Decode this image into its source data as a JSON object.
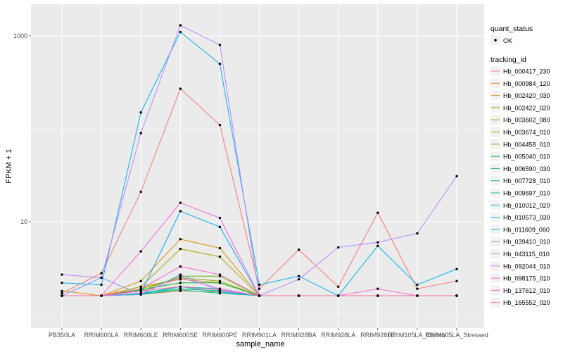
{
  "chart_data": {
    "type": "line",
    "xlabel": "sample_name",
    "ylabel": "FPKM + 1",
    "y_scale": "log10",
    "ylim": [
      1.55,
      1500
    ],
    "y_ticks": [
      10,
      1000
    ],
    "grid": true,
    "legend_position": "right",
    "categories": [
      "PB350LA",
      "RRIM600LA",
      "RRIM600LE",
      "RRIM600SE",
      "RRIM600PE",
      "RRIM901LA",
      "RRIM928BA",
      "RRIM928LA",
      "RRIM928LE",
      "RRIM105LA_Control",
      "RRIM105LA_Stressed"
    ],
    "point_legend": {
      "title": "quant_status",
      "label": "OK"
    },
    "line_legend_title": "tracking_id",
    "series": [
      {
        "name": "Hb_000417_230",
        "color": "#F8766D",
        "values": [
          1.7,
          2.8,
          21,
          270,
          110,
          1.9,
          5.0,
          2.0,
          12.5,
          1.9,
          2.3
        ]
      },
      {
        "name": "Hb_000984_120",
        "color": "#EC8239",
        "values": [
          1.6,
          1.6,
          1.65,
          1.8,
          1.75,
          1.6,
          1.6,
          1.6,
          1.6,
          1.6,
          1.6
        ]
      },
      {
        "name": "Hb_002420_030",
        "color": "#DB8E00",
        "values": [
          1.8,
          1.6,
          2.3,
          6.5,
          5.2,
          1.6,
          1.6,
          1.6,
          1.6,
          1.6,
          1.6
        ]
      },
      {
        "name": "Hb_002422_020",
        "color": "#C79800",
        "values": [
          1.6,
          1.6,
          2.0,
          2.4,
          2.2,
          1.6,
          1.6,
          1.6,
          1.6,
          1.6,
          1.6
        ]
      },
      {
        "name": "Hb_003602_080",
        "color": "#AEA200",
        "values": [
          1.6,
          1.6,
          2.0,
          5.1,
          4.2,
          1.6,
          1.6,
          1.6,
          1.6,
          1.6,
          1.6
        ]
      },
      {
        "name": "Hb_003674_010",
        "color": "#8FAA00",
        "values": [
          1.6,
          1.6,
          1.9,
          2.5,
          2.3,
          1.6,
          1.6,
          1.6,
          1.6,
          1.6,
          1.6
        ]
      },
      {
        "name": "Hb_004458_010",
        "color": "#64B200",
        "values": [
          1.6,
          1.6,
          1.8,
          2.6,
          2.6,
          1.6,
          1.6,
          1.6,
          1.6,
          1.6,
          1.6
        ]
      },
      {
        "name": "Hb_005040_010",
        "color": "#00B81B",
        "values": [
          1.6,
          1.6,
          1.85,
          2.2,
          2.2,
          1.6,
          1.6,
          1.6,
          1.6,
          1.6,
          1.6
        ]
      },
      {
        "name": "Hb_006590_030",
        "color": "#00BD5C",
        "values": [
          1.6,
          1.6,
          1.7,
          1.9,
          1.8,
          1.6,
          1.6,
          1.6,
          1.6,
          1.6,
          1.6
        ]
      },
      {
        "name": "Hb_007728_010",
        "color": "#00C08E",
        "values": [
          1.6,
          1.6,
          1.65,
          1.85,
          1.7,
          1.6,
          1.6,
          1.6,
          1.6,
          1.6,
          1.6
        ]
      },
      {
        "name": "Hb_009697_010",
        "color": "#00C1B7",
        "values": [
          1.6,
          1.6,
          1.7,
          2.0,
          1.9,
          1.6,
          1.6,
          1.6,
          1.6,
          1.6,
          1.6
        ]
      },
      {
        "name": "Hb_010012_020",
        "color": "#00BDDC",
        "values": [
          1.6,
          1.6,
          1.65,
          2.0,
          1.75,
          1.6,
          1.6,
          1.6,
          1.6,
          1.6,
          1.6
        ]
      },
      {
        "name": "Hb_010573_030",
        "color": "#00B2F3",
        "values": [
          2.2,
          2.1,
          150,
          1100,
          500,
          2.1,
          2.6,
          1.6,
          5.5,
          2.1,
          3.1
        ]
      },
      {
        "name": "Hb_011609_060",
        "color": "#00A6FF",
        "values": [
          1.6,
          1.6,
          1.7,
          13,
          8.8,
          1.6,
          1.6,
          1.6,
          1.6,
          1.6,
          1.6
        ]
      },
      {
        "name": "Hb_039410_010",
        "color": "#7F96FF",
        "values": [
          1.6,
          2.5,
          1.65,
          2.7,
          1.8,
          1.6,
          1.6,
          1.6,
          1.6,
          1.6,
          1.6
        ]
      },
      {
        "name": "Hb_043115_010",
        "color": "#BB83FF",
        "values": [
          2.7,
          2.5,
          90,
          1300,
          800,
          1.6,
          2.4,
          5.3,
          6.0,
          7.5,
          31
        ]
      },
      {
        "name": "Hb_092044_010",
        "color": "#E26EF7",
        "values": [
          1.6,
          1.6,
          1.7,
          2.5,
          1.9,
          1.6,
          1.6,
          1.6,
          1.6,
          1.6,
          1.6
        ]
      },
      {
        "name": "Hb_098175_010",
        "color": "#F863DF",
        "values": [
          1.6,
          1.6,
          4.8,
          16,
          11,
          1.6,
          1.6,
          1.6,
          1.9,
          1.6,
          1.6
        ]
      },
      {
        "name": "Hb_137612_010",
        "color": "#FF62BF",
        "values": [
          1.6,
          1.6,
          1.9,
          3.3,
          2.7,
          1.6,
          1.6,
          1.6,
          1.6,
          1.6,
          1.6
        ]
      },
      {
        "name": "Hb_165552_020",
        "color": "#FF6A98",
        "values": [
          1.6,
          1.6,
          1.8,
          2.0,
          1.85,
          1.6,
          1.6,
          1.6,
          1.6,
          1.6,
          1.6
        ]
      }
    ]
  }
}
